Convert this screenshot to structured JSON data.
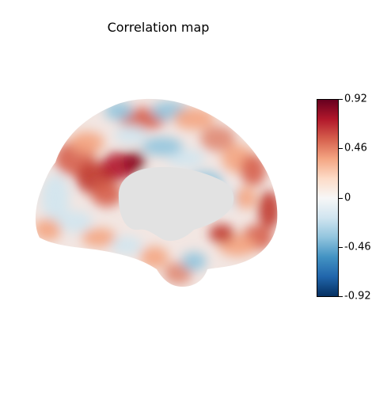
{
  "title": "Correlation map",
  "colorbar": {
    "min": -0.92,
    "max": 0.92,
    "ticks": [
      "0.92",
      "0.46",
      "0",
      "-0.46",
      "-0.92"
    ],
    "colormap": [
      "#053061",
      "#2166ac",
      "#4393c3",
      "#92c5de",
      "#d1e5f0",
      "#f7f7f7",
      "#fddbc7",
      "#f4a582",
      "#d6604d",
      "#b2182b",
      "#67001f"
    ]
  },
  "colors": {
    "medial_wall": "#e2e2e2",
    "background": "#ffffff"
  }
}
